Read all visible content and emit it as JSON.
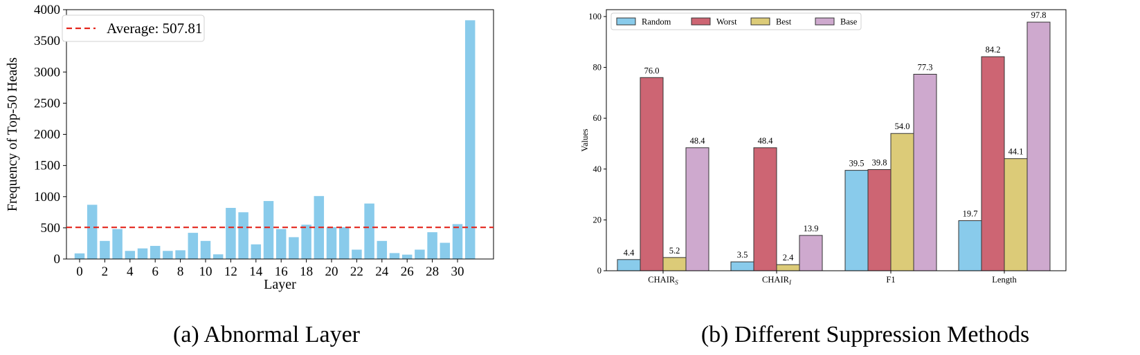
{
  "captions": {
    "a": "(a) Abnormal Layer",
    "b": "(b) Different Suppression Methods"
  },
  "chart_data": [
    {
      "type": "bar",
      "xlabel": "Layer",
      "ylabel": "Frequency of Top-50 Heads",
      "ylim": [
        0,
        4000
      ],
      "yticks": [
        0,
        500,
        1000,
        1500,
        2000,
        2500,
        3000,
        3500,
        4000
      ],
      "xticks": [
        0,
        2,
        4,
        6,
        8,
        10,
        12,
        14,
        16,
        18,
        20,
        22,
        24,
        26,
        28,
        30
      ],
      "categories": [
        0,
        1,
        2,
        3,
        4,
        5,
        6,
        7,
        8,
        9,
        10,
        11,
        12,
        13,
        14,
        15,
        16,
        17,
        18,
        19,
        20,
        21,
        22,
        23,
        24,
        25,
        26,
        27,
        28,
        29,
        30,
        31
      ],
      "values": [
        90,
        870,
        290,
        480,
        130,
        170,
        210,
        130,
        140,
        420,
        290,
        75,
        820,
        750,
        235,
        930,
        480,
        350,
        550,
        1010,
        510,
        510,
        150,
        890,
        290,
        95,
        70,
        150,
        430,
        260,
        560,
        3830
      ],
      "bar_color": "#89CBEB",
      "reference_line": {
        "value": 507.81,
        "label": "Average: 507.81",
        "color": "#E3241B",
        "style": "dashed"
      },
      "legend_position": "top-left",
      "grid": false
    },
    {
      "type": "bar",
      "xlabel": "",
      "ylabel": "Values",
      "ylim": [
        0,
        100
      ],
      "yticks": [
        0,
        20,
        40,
        60,
        80,
        100
      ],
      "categories": [
        {
          "main": "CHAIR",
          "sub": "S"
        },
        {
          "main": "CHAIR",
          "sub": "I"
        },
        {
          "main": "F1",
          "sub": ""
        },
        {
          "main": "Length",
          "sub": ""
        }
      ],
      "series": [
        {
          "name": "Random",
          "color": "#89CBEB",
          "values": [
            4.4,
            3.5,
            39.5,
            19.7
          ]
        },
        {
          "name": "Worst",
          "color": "#CD6573",
          "values": [
            76.0,
            48.4,
            39.8,
            84.2
          ]
        },
        {
          "name": "Best",
          "color": "#DCCB78",
          "values": [
            5.2,
            2.4,
            54.0,
            44.1
          ]
        },
        {
          "name": "Base",
          "color": "#CEA9CE",
          "values": [
            48.4,
            13.9,
            77.3,
            97.8
          ]
        }
      ],
      "value_labels": [
        [
          "4.4",
          "3.5",
          "39.5",
          "19.7"
        ],
        [
          "76.0",
          "48.4",
          "39.8",
          "84.2"
        ],
        [
          "5.2",
          "2.4",
          "54.0",
          "44.1"
        ],
        [
          "48.4",
          "13.9",
          "77.3",
          "97.8"
        ]
      ],
      "legend_position": "top-left",
      "grid": false
    }
  ]
}
